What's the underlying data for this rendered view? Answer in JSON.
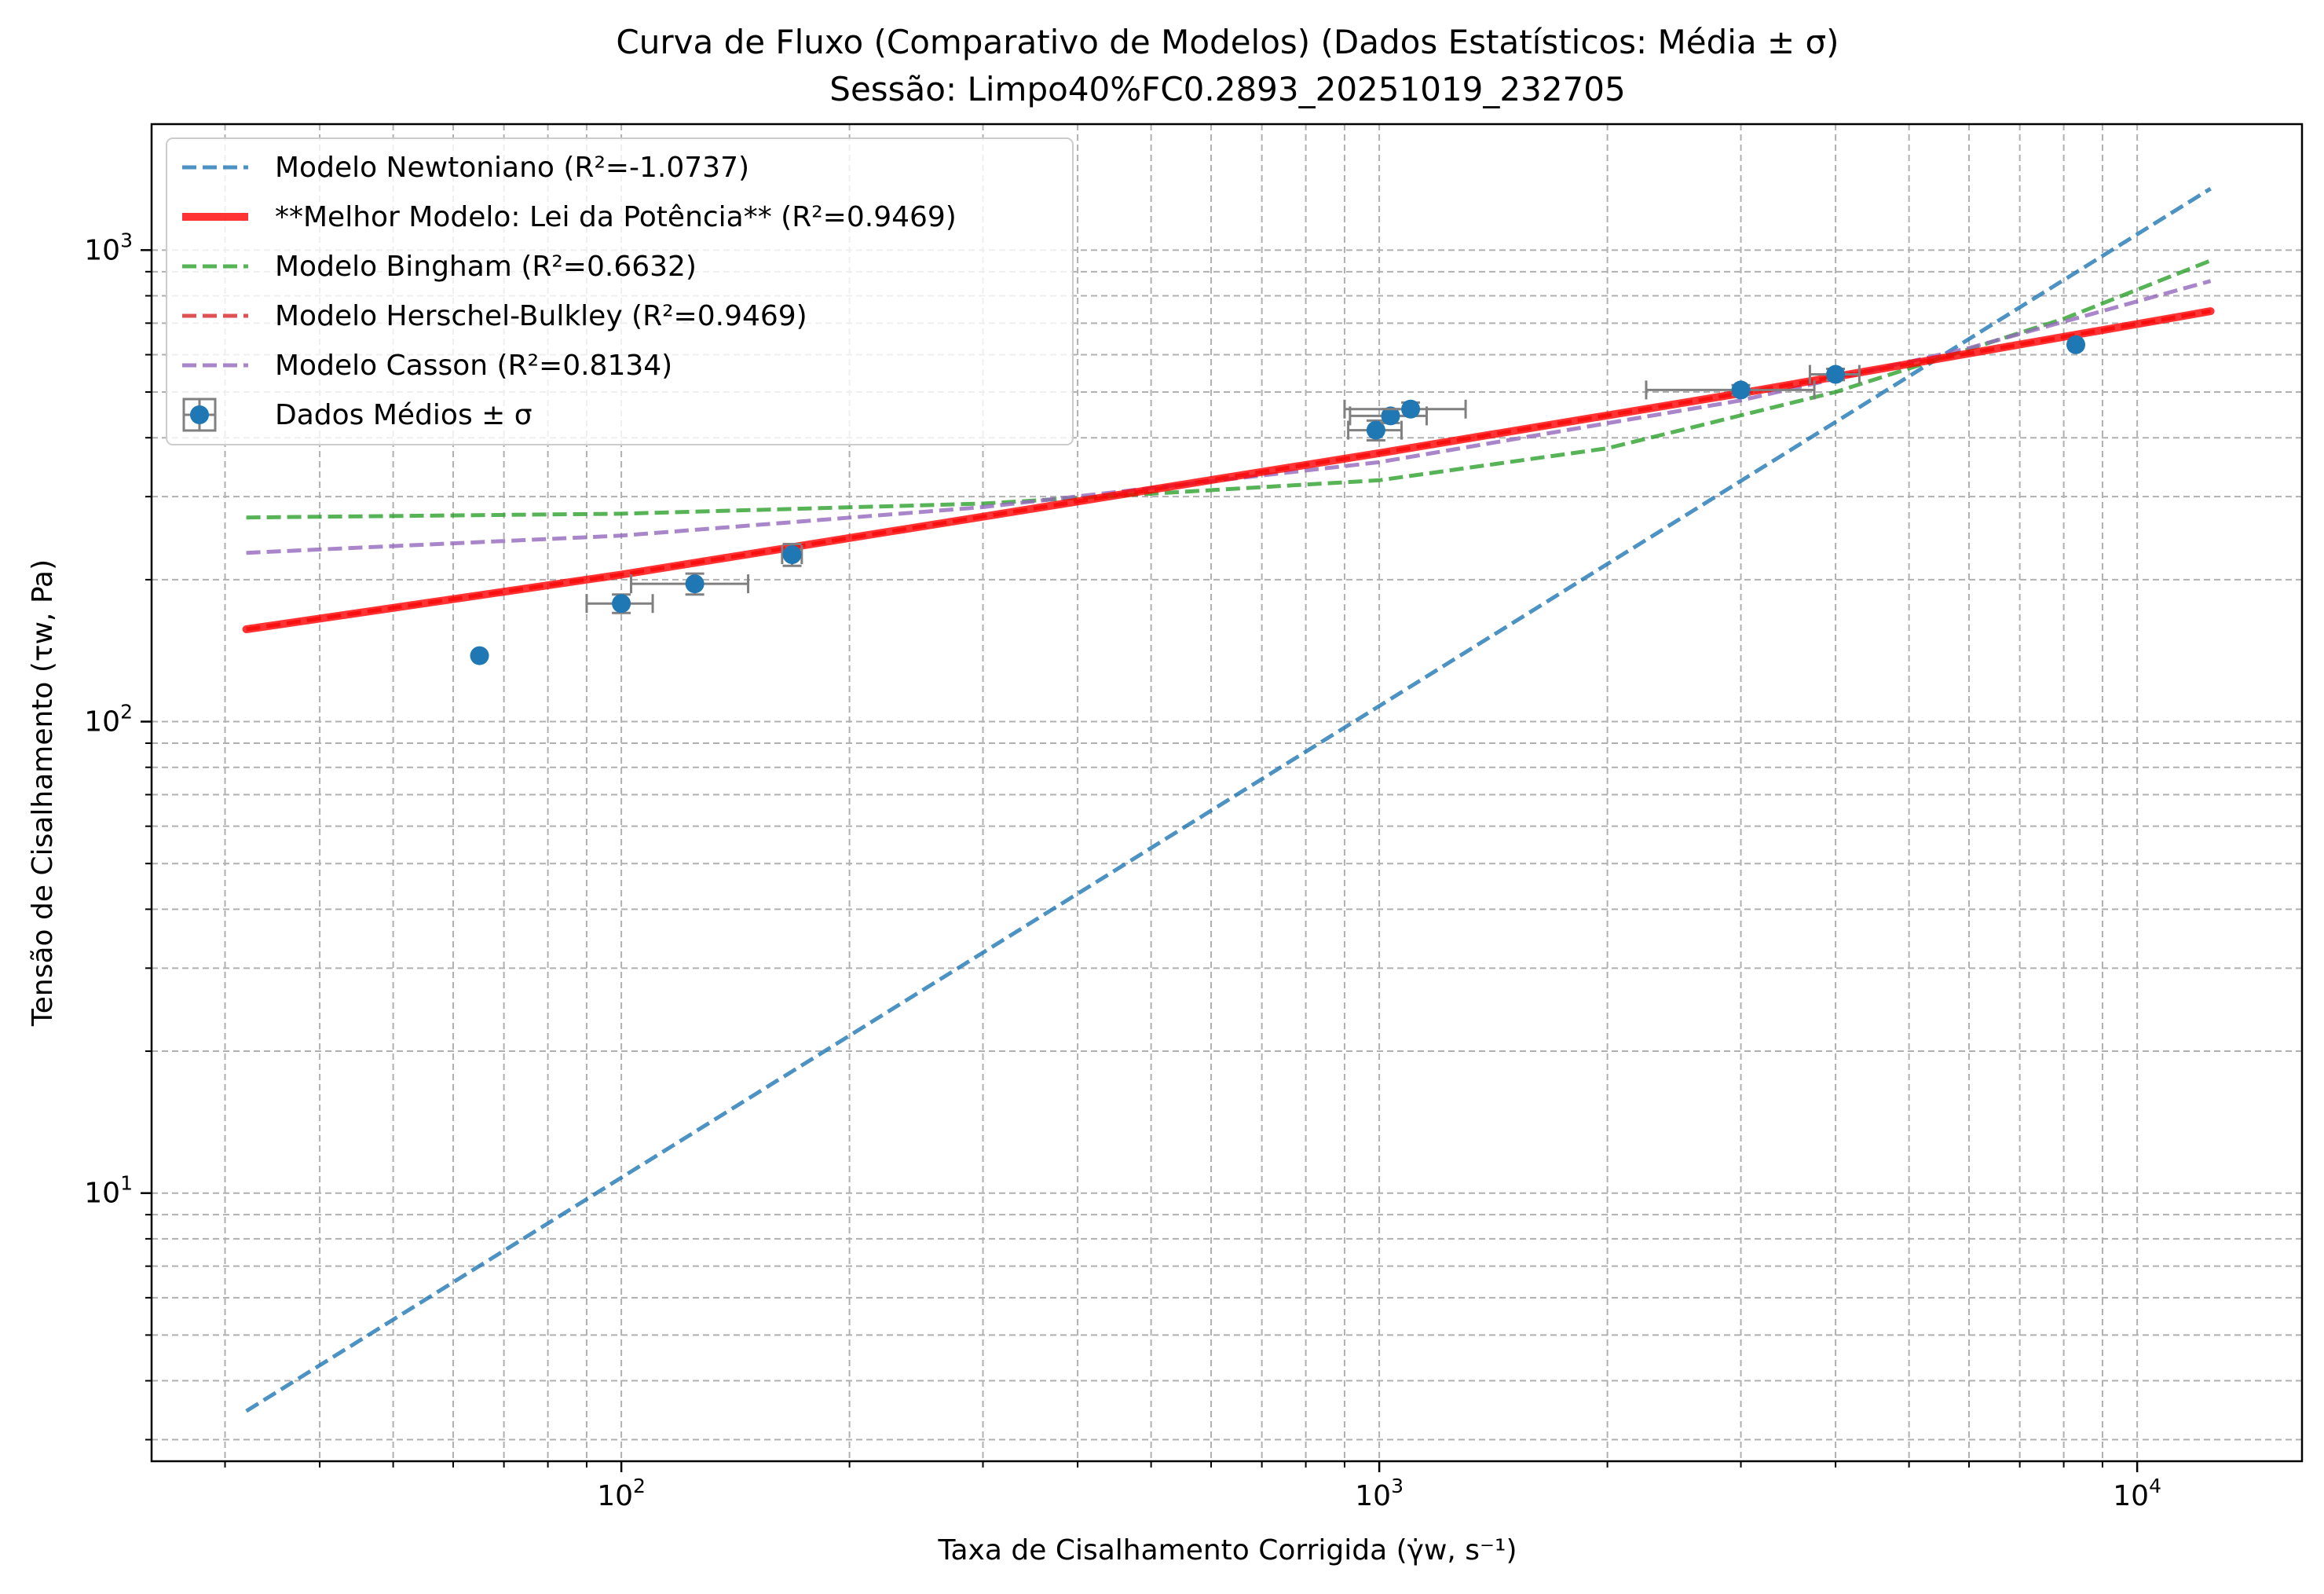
{
  "chart_data": {
    "type": "line",
    "title": "Curva de Fluxo (Comparativo de Modelos) (Dados Estatísticos: Média ± σ)",
    "subtitle": "Sessão: Limpo40%FC0.2893_20251019_232705",
    "xlabel": "Taxa de Cisalhamento Corrigida (γ̇w, s⁻¹)",
    "ylabel": "Tensão de Cisalhamento (τw, Pa)",
    "xscale": "log",
    "yscale": "log",
    "xlim": [
      24,
      16500
    ],
    "ylim": [
      2.7,
      1850
    ],
    "x_ticks": [
      {
        "value": 100,
        "base": "10",
        "exp": "2"
      },
      {
        "value": 1000,
        "base": "10",
        "exp": "3"
      },
      {
        "value": 10000,
        "base": "10",
        "exp": "4"
      }
    ],
    "y_ticks": [
      {
        "value": 10,
        "base": "10",
        "exp": "1"
      },
      {
        "value": 100,
        "base": "10",
        "exp": "2"
      },
      {
        "value": 1000,
        "base": "10",
        "exp": "3"
      }
    ],
    "grid": true,
    "legend_position": "top-left",
    "series": [
      {
        "name": "Modelo Newtoniano (R²=-1.0737)",
        "style": "dashed",
        "color": "#1f77b4",
        "width": 5,
        "opacity": 0.8,
        "x": [
          32,
          12500
        ],
        "y": [
          3.45,
          1350
        ]
      },
      {
        "name": "Modelo Bingham (R²=0.6632)",
        "style": "dashed",
        "color": "#2ca02c",
        "width": 5,
        "opacity": 0.8,
        "x": [
          32,
          100,
          300,
          1000,
          2000,
          4000,
          8000,
          12500
        ],
        "y": [
          271,
          276,
          290,
          325,
          380,
          500,
          715,
          950
        ]
      },
      {
        "name": "Modelo Herschel-Bulkley (R²=0.9469)",
        "style": "dashed",
        "color": "#d62728",
        "width": 5,
        "opacity": 0.8,
        "x": [
          32,
          100,
          1000,
          3000,
          12500
        ],
        "y": [
          157,
          205,
          371,
          497,
          742
        ]
      },
      {
        "name": "Modelo Casson (R²=0.8134)",
        "style": "dashed",
        "color": "#9467bd",
        "width": 5,
        "opacity": 0.8,
        "x": [
          32,
          100,
          300,
          1000,
          3000,
          6000,
          12500
        ],
        "y": [
          228,
          248,
          285,
          355,
          480,
          620,
          860
        ]
      },
      {
        "name": "**Melhor Modelo: Lei da Potência** (R²=0.9469)",
        "style": "solid",
        "color": "#ff0000",
        "width": 10,
        "opacity": 0.8,
        "x": [
          32,
          100,
          1000,
          3000,
          12500
        ],
        "y": [
          157,
          205,
          371,
          497,
          742
        ]
      }
    ],
    "points": {
      "name": "Dados Médios ± σ",
      "color": "#1f77b4",
      "errorbar_color": "#808080",
      "x": [
        65,
        100,
        125,
        168,
        990,
        1035,
        1100,
        3000,
        4000,
        8300
      ],
      "y": [
        138,
        178,
        196,
        226,
        415,
        445,
        460,
        505,
        545,
        630
      ],
      "xerr": [
        0,
        10,
        22,
        5,
        80,
        120,
        200,
        750,
        300,
        0
      ],
      "yerr": [
        0,
        8,
        10,
        12,
        20,
        15,
        15,
        12,
        15,
        0
      ]
    }
  },
  "legend": {
    "items": [
      {
        "label": "Modelo Newtoniano (R²=-1.0737)",
        "kind": "dashed",
        "color": "#1f77b4"
      },
      {
        "label": "**Melhor Modelo: Lei da Potência** (R²=0.9469)",
        "kind": "solid",
        "color": "#ff0000"
      },
      {
        "label": "Modelo Bingham (R²=0.6632)",
        "kind": "dashed",
        "color": "#2ca02c"
      },
      {
        "label": "Modelo Herschel-Bulkley (R²=0.9469)",
        "kind": "dashed",
        "color": "#d62728"
      },
      {
        "label": "Modelo Casson (R²=0.8134)",
        "kind": "dashed",
        "color": "#9467bd"
      },
      {
        "label": "Dados Médios ± σ",
        "kind": "marker",
        "color": "#1f77b4"
      }
    ]
  }
}
